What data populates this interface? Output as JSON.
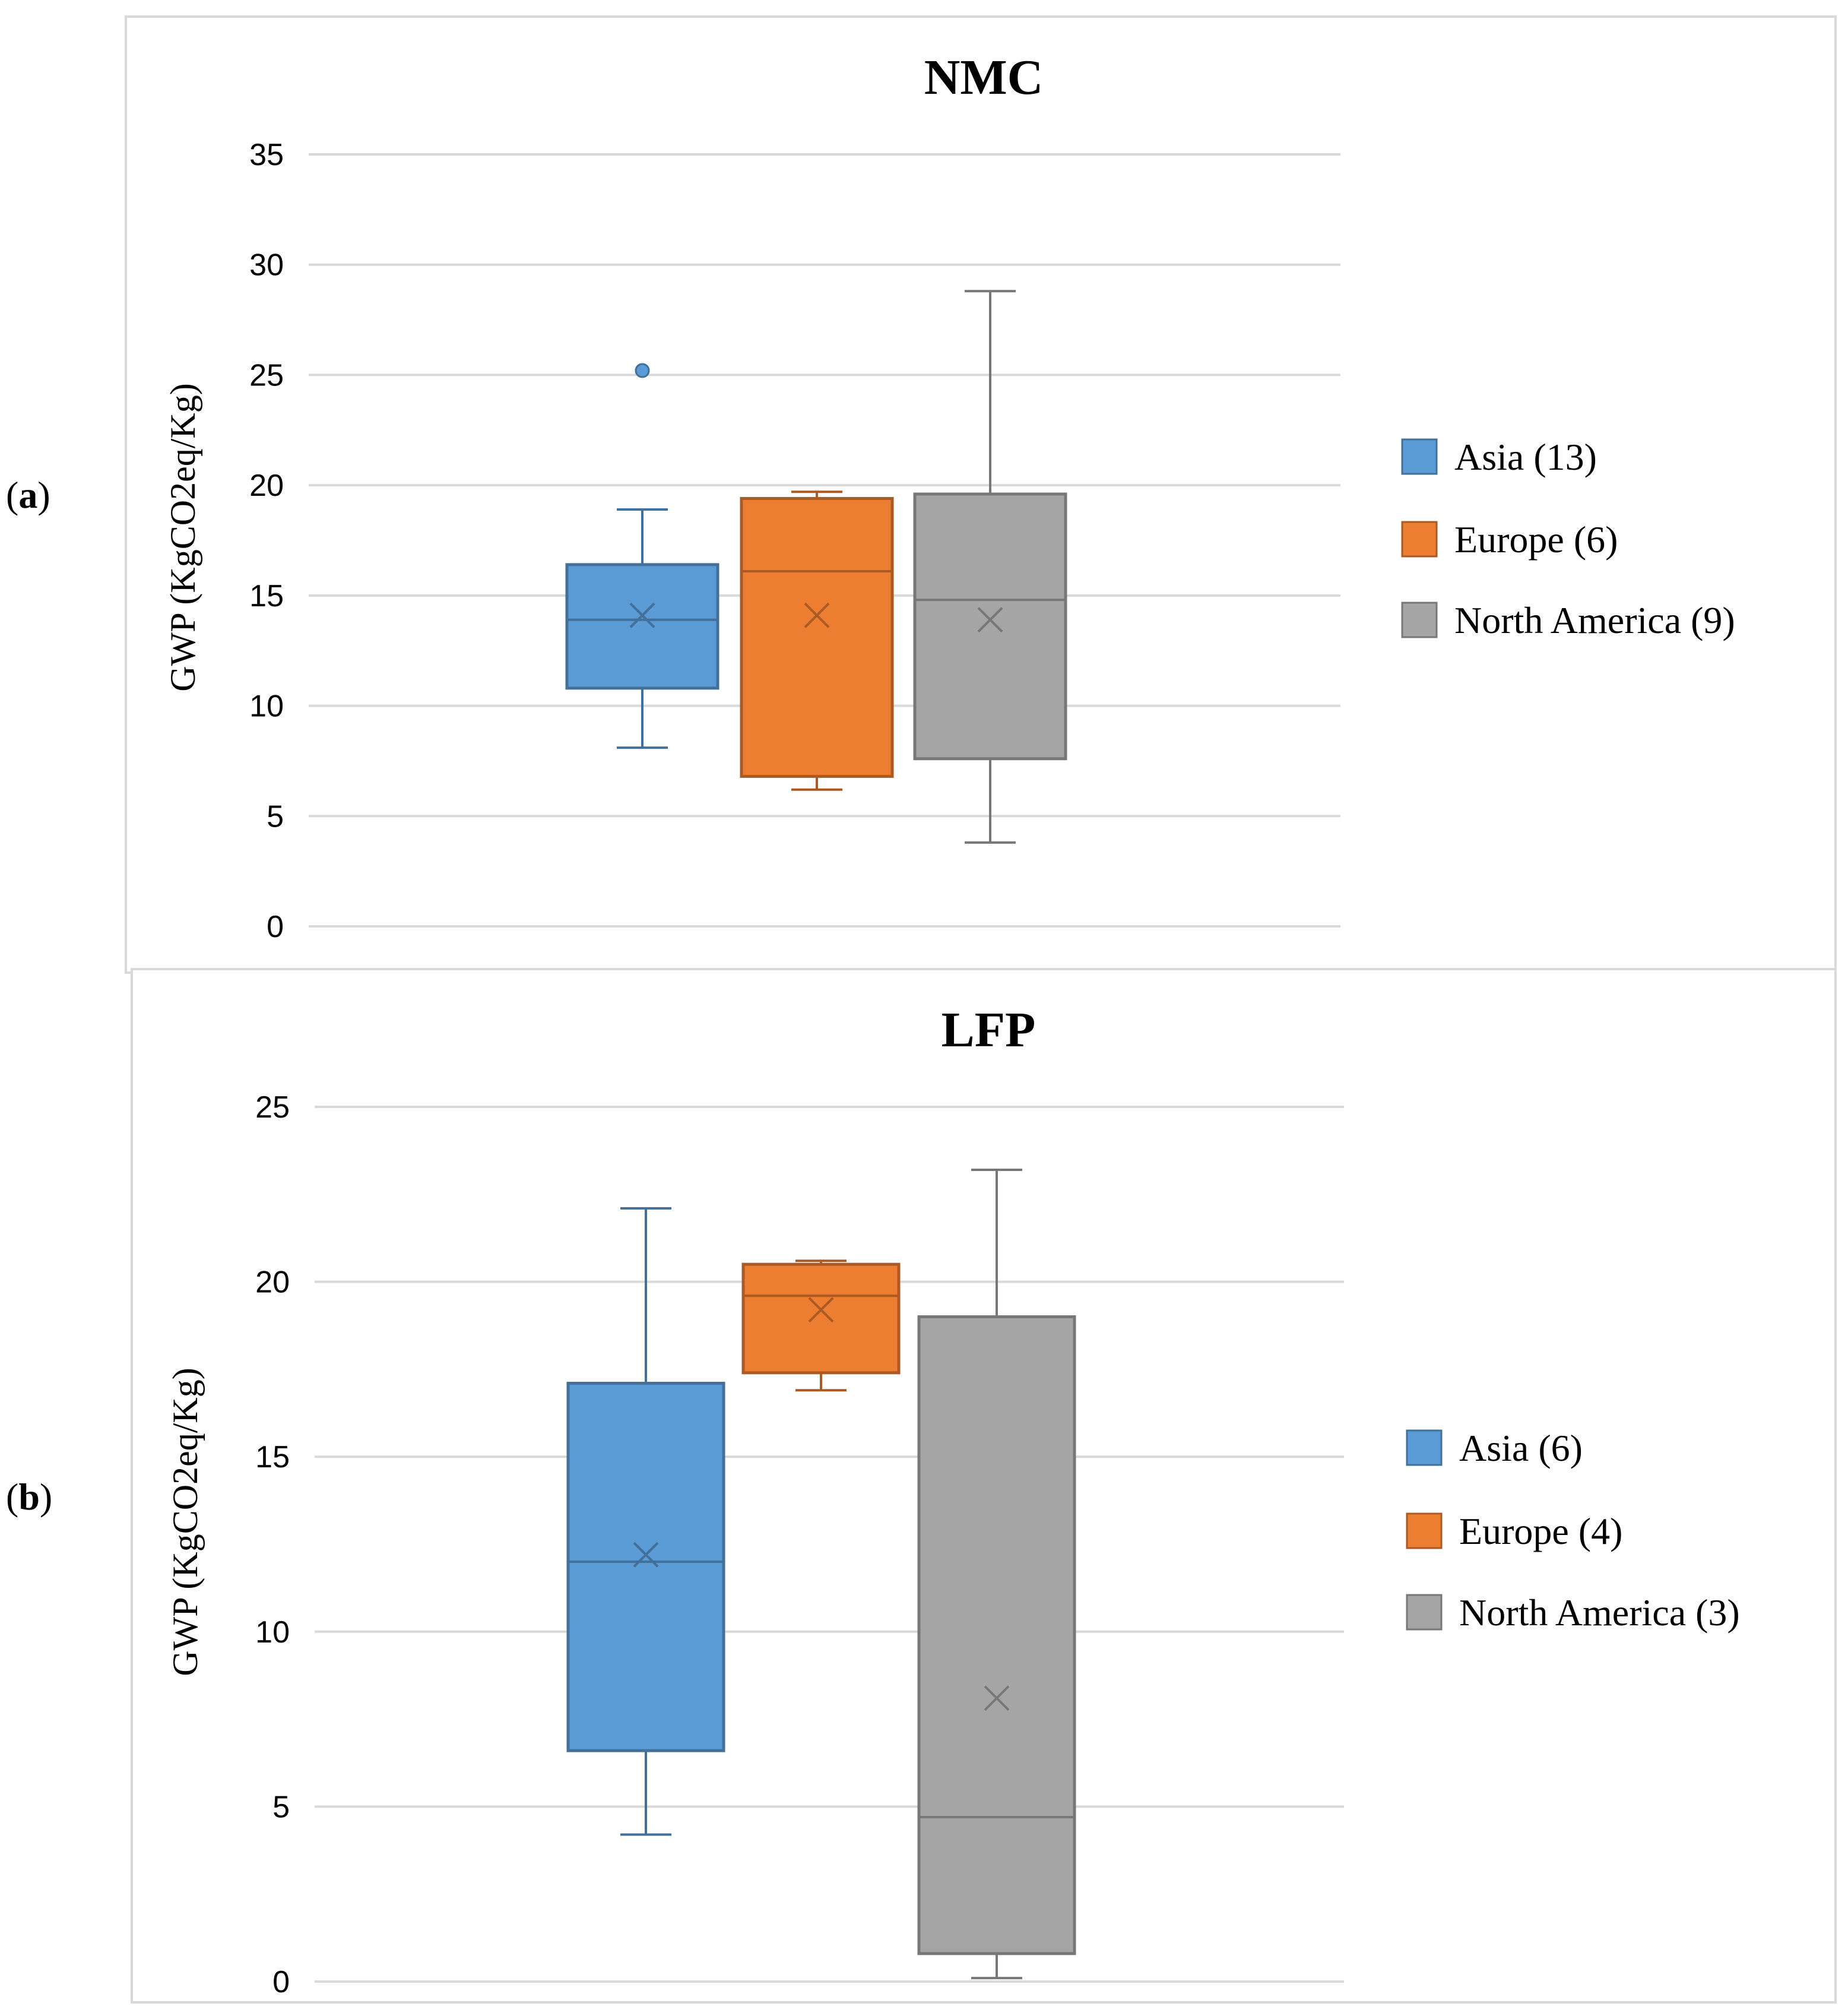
{
  "chart_data": [
    {
      "type": "boxplot",
      "panel_label": "a",
      "title": "NMC",
      "ylabel": "GWP (KgCO2eq/Kg)",
      "ylim": [
        0,
        35
      ],
      "yticks": [
        0,
        5,
        10,
        15,
        20,
        25,
        30,
        35
      ],
      "grid": true,
      "legend_position": "right",
      "series": [
        {
          "name": "Asia (13)",
          "color": "#5b9bd5",
          "min": 8.1,
          "q1": 10.8,
          "median": 13.9,
          "q3": 16.4,
          "max": 18.9,
          "mean": 14.1,
          "outliers": [
            25.2
          ]
        },
        {
          "name": "Europe (6)",
          "color": "#ed7d31",
          "min": 6.2,
          "q1": 6.8,
          "median": 16.1,
          "q3": 19.4,
          "max": 19.7,
          "mean": 14.1,
          "outliers": []
        },
        {
          "name": "North America (9)",
          "color": "#a5a5a5",
          "min": 3.8,
          "q1": 7.6,
          "median": 14.8,
          "q3": 19.6,
          "max": 28.8,
          "mean": 13.9,
          "outliers": []
        }
      ]
    },
    {
      "type": "boxplot",
      "panel_label": "b",
      "title": "LFP",
      "ylabel": "GWP (KgCO2eq/Kg)",
      "ylim": [
        0,
        25
      ],
      "yticks": [
        0,
        5,
        10,
        15,
        20,
        25
      ],
      "grid": true,
      "legend_position": "right",
      "series": [
        {
          "name": "Asia (6)",
          "color": "#5b9bd5",
          "min": 4.2,
          "q1": 6.6,
          "median": 12.0,
          "q3": 17.1,
          "max": 22.1,
          "mean": 12.2,
          "outliers": []
        },
        {
          "name": "Europe (4)",
          "color": "#ed7d31",
          "min": 16.9,
          "q1": 17.4,
          "median": 19.6,
          "q3": 20.5,
          "max": 20.6,
          "mean": 19.2,
          "outliers": []
        },
        {
          "name": "North America (3)",
          "color": "#a5a5a5",
          "min": 0.1,
          "q1": 0.8,
          "median": 4.7,
          "q3": 19.0,
          "max": 23.2,
          "mean": 8.1,
          "outliers": []
        }
      ]
    }
  ]
}
